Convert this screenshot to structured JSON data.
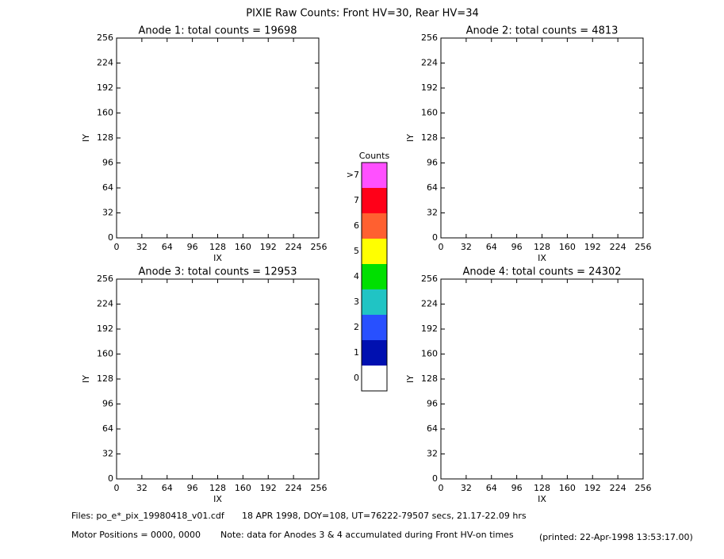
{
  "title": "PIXIE Raw Counts:  Front HV=30, Rear HV=34",
  "chart_data": [
    {
      "type": "heatmap",
      "title": "Anode 1: total counts = 19698",
      "x_label": "IX",
      "y_label": "IY",
      "xlim": [
        0,
        256
      ],
      "ylim": [
        0,
        256
      ],
      "xticks": [
        0,
        32,
        64,
        96,
        128,
        160,
        192,
        224,
        256
      ],
      "yticks": [
        0,
        32,
        64,
        96,
        128,
        160,
        192,
        224,
        256
      ]
    },
    {
      "type": "heatmap",
      "title": "Anode 2: total counts = 4813",
      "x_label": "IX",
      "y_label": "IY",
      "xlim": [
        0,
        256
      ],
      "ylim": [
        0,
        256
      ],
      "xticks": [
        0,
        32,
        64,
        96,
        128,
        160,
        192,
        224,
        256
      ],
      "yticks": [
        0,
        32,
        64,
        96,
        128,
        160,
        192,
        224,
        256
      ]
    },
    {
      "type": "heatmap",
      "title": "Anode 3: total counts = 12953",
      "x_label": "IX",
      "y_label": "IY",
      "xlim": [
        0,
        256
      ],
      "ylim": [
        0,
        256
      ],
      "xticks": [
        0,
        32,
        64,
        96,
        128,
        160,
        192,
        224,
        256
      ],
      "yticks": [
        0,
        32,
        64,
        96,
        128,
        160,
        192,
        224,
        256
      ]
    },
    {
      "type": "heatmap",
      "title": "Anode 4: total counts = 24302",
      "x_label": "IX",
      "y_label": "IY",
      "xlim": [
        0,
        256
      ],
      "ylim": [
        0,
        256
      ],
      "xticks": [
        0,
        32,
        64,
        96,
        128,
        160,
        192,
        224,
        256
      ],
      "yticks": [
        0,
        32,
        64,
        96,
        128,
        160,
        192,
        224,
        256
      ]
    }
  ],
  "colorbar": {
    "title": "Counts",
    "levels": [
      {
        "label": "0",
        "color": "#ffffff"
      },
      {
        "label": "1",
        "color": "#0010b0"
      },
      {
        "label": "2",
        "color": "#2850ff"
      },
      {
        "label": "3",
        "color": "#20c4c4"
      },
      {
        "label": "4",
        "color": "#00e000"
      },
      {
        "label": "5",
        "color": "#ffff00"
      },
      {
        "label": "6",
        "color": "#ff6030"
      },
      {
        "label": "7",
        "color": "#ff0018"
      },
      {
        "label": ">7",
        "color": "#ff50ff"
      }
    ]
  },
  "footer": {
    "files": "Files: po_e*_pix_19980418_v01.cdf",
    "info": "18 APR 1998, DOY=108, UT=76222-79507 secs, 21.17-22.09 hrs",
    "motor": "Motor Positions = 0000, 0000",
    "note": "Note: data for Anodes 3 & 4 accumulated during Front HV-on times",
    "printed": "(printed: 22-Apr-1998 13:53:17.00)"
  }
}
